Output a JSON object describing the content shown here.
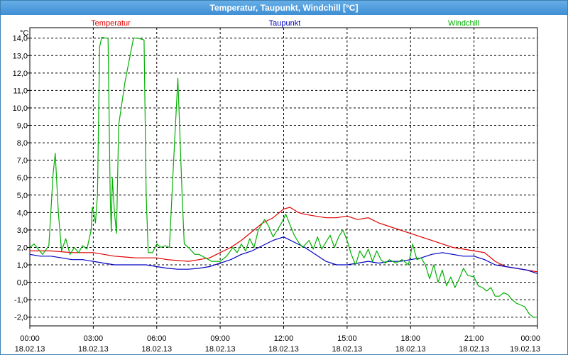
{
  "window": {
    "title": "Temperatur, Taupunkt, Windchill [°C]"
  },
  "chart_data": {
    "type": "line",
    "title": "Temperatur, Taupunkt, Windchill [°C]",
    "y_unit_label": "°C",
    "ylim": [
      -2.5,
      14.6
    ],
    "y_ticks": [
      14.0,
      13.0,
      12.0,
      11.0,
      10.0,
      9.0,
      8.0,
      7.0,
      6.0,
      5.0,
      4.0,
      3.0,
      2.0,
      1.0,
      0.0,
      -1.0,
      -2.0
    ],
    "y_tick_labels": [
      "14,0",
      "13,0",
      "12,0",
      "11,0",
      "10,0",
      "9,0",
      "8,0",
      "7,0",
      "6,0",
      "5,0",
      "4,0",
      "3,0",
      "2,0",
      "1,0",
      "0,0",
      "-1,0",
      "-2,0"
    ],
    "x_range_hours": [
      0,
      24
    ],
    "x_ticks": [
      {
        "t": "00:00",
        "d": "18.02.13"
      },
      {
        "t": "03:00",
        "d": "18.02.13"
      },
      {
        "t": "06:00",
        "d": "18.02.13"
      },
      {
        "t": "09:00",
        "d": "18.02.13"
      },
      {
        "t": "12:00",
        "d": "18.02.13"
      },
      {
        "t": "15:00",
        "d": "18.02.13"
      },
      {
        "t": "18:00",
        "d": "18.02.13"
      },
      {
        "t": "21:00",
        "d": "18.02.13"
      },
      {
        "t": "00:00",
        "d": "19.02.13"
      }
    ],
    "grid": true,
    "series": [
      {
        "name": "Temperatur",
        "color": "#e00000",
        "points": [
          [
            0.0,
            1.8
          ],
          [
            0.5,
            1.8
          ],
          [
            1.0,
            1.8
          ],
          [
            1.5,
            1.75
          ],
          [
            2.0,
            1.7
          ],
          [
            2.5,
            1.7
          ],
          [
            3.0,
            1.7
          ],
          [
            3.5,
            1.6
          ],
          [
            4.0,
            1.5
          ],
          [
            4.5,
            1.45
          ],
          [
            5.0,
            1.4
          ],
          [
            5.5,
            1.4
          ],
          [
            6.0,
            1.4
          ],
          [
            6.5,
            1.3
          ],
          [
            7.0,
            1.25
          ],
          [
            7.5,
            1.2
          ],
          [
            8.0,
            1.3
          ],
          [
            8.5,
            1.4
          ],
          [
            9.0,
            1.7
          ],
          [
            9.5,
            2.0
          ],
          [
            10.0,
            2.4
          ],
          [
            10.5,
            2.9
          ],
          [
            11.0,
            3.4
          ],
          [
            11.5,
            3.7
          ],
          [
            12.0,
            4.2
          ],
          [
            12.3,
            4.3
          ],
          [
            12.7,
            4.0
          ],
          [
            13.0,
            3.9
          ],
          [
            13.5,
            3.8
          ],
          [
            14.0,
            3.7
          ],
          [
            14.5,
            3.7
          ],
          [
            15.0,
            3.8
          ],
          [
            15.5,
            3.6
          ],
          [
            16.0,
            3.7
          ],
          [
            16.5,
            3.4
          ],
          [
            17.0,
            3.2
          ],
          [
            17.5,
            3.0
          ],
          [
            18.0,
            2.8
          ],
          [
            18.5,
            2.6
          ],
          [
            19.0,
            2.4
          ],
          [
            19.5,
            2.2
          ],
          [
            20.0,
            2.0
          ],
          [
            20.5,
            1.9
          ],
          [
            21.0,
            1.8
          ],
          [
            21.5,
            1.7
          ],
          [
            22.0,
            1.2
          ],
          [
            22.5,
            0.9
          ],
          [
            23.0,
            0.8
          ],
          [
            23.5,
            0.7
          ],
          [
            24.0,
            0.6
          ]
        ]
      },
      {
        "name": "Taupunkt",
        "color": "#0000c0",
        "points": [
          [
            0.0,
            1.6
          ],
          [
            0.5,
            1.5
          ],
          [
            1.0,
            1.5
          ],
          [
            1.5,
            1.4
          ],
          [
            2.0,
            1.3
          ],
          [
            2.5,
            1.3
          ],
          [
            3.0,
            1.2
          ],
          [
            3.5,
            1.1
          ],
          [
            4.0,
            1.0
          ],
          [
            4.5,
            1.0
          ],
          [
            5.0,
            1.0
          ],
          [
            5.5,
            1.0
          ],
          [
            6.0,
            0.9
          ],
          [
            6.5,
            0.8
          ],
          [
            7.0,
            0.75
          ],
          [
            7.5,
            0.75
          ],
          [
            8.0,
            0.8
          ],
          [
            8.5,
            0.9
          ],
          [
            9.0,
            1.1
          ],
          [
            9.5,
            1.3
          ],
          [
            10.0,
            1.6
          ],
          [
            10.5,
            1.8
          ],
          [
            11.0,
            2.1
          ],
          [
            11.5,
            2.4
          ],
          [
            12.0,
            2.6
          ],
          [
            12.5,
            2.3
          ],
          [
            13.0,
            2.0
          ],
          [
            13.5,
            1.6
          ],
          [
            14.0,
            1.2
          ],
          [
            14.5,
            1.0
          ],
          [
            15.0,
            1.0
          ],
          [
            15.5,
            1.1
          ],
          [
            16.0,
            1.2
          ],
          [
            16.5,
            1.1
          ],
          [
            17.0,
            1.2
          ],
          [
            17.5,
            1.2
          ],
          [
            18.0,
            1.3
          ],
          [
            18.5,
            1.4
          ],
          [
            19.0,
            1.6
          ],
          [
            19.5,
            1.7
          ],
          [
            20.0,
            1.6
          ],
          [
            20.5,
            1.5
          ],
          [
            21.0,
            1.5
          ],
          [
            21.5,
            1.3
          ],
          [
            22.0,
            1.0
          ],
          [
            22.5,
            0.9
          ],
          [
            23.0,
            0.8
          ],
          [
            23.5,
            0.7
          ],
          [
            24.0,
            0.5
          ]
        ]
      },
      {
        "name": "Windchill",
        "color": "#00b000",
        "points": [
          [
            0.0,
            2.0
          ],
          [
            0.2,
            2.2
          ],
          [
            0.4,
            1.9
          ],
          [
            0.6,
            1.6
          ],
          [
            0.9,
            2.1
          ],
          [
            1.1,
            6.2
          ],
          [
            1.2,
            7.4
          ],
          [
            1.35,
            4.0
          ],
          [
            1.5,
            1.8
          ],
          [
            1.7,
            2.5
          ],
          [
            1.9,
            1.6
          ],
          [
            2.1,
            2.0
          ],
          [
            2.3,
            1.7
          ],
          [
            2.5,
            2.1
          ],
          [
            2.7,
            1.9
          ],
          [
            2.9,
            3.0
          ],
          [
            2.95,
            4.3
          ],
          [
            3.05,
            3.8
          ],
          [
            3.1,
            3.4
          ],
          [
            3.2,
            5.0
          ],
          [
            3.3,
            13.5
          ],
          [
            3.4,
            14.05
          ],
          [
            3.6,
            14.0
          ],
          [
            3.7,
            14.0
          ],
          [
            3.8,
            5.0
          ],
          [
            3.85,
            2.9
          ],
          [
            3.9,
            6.0
          ],
          [
            4.0,
            4.0
          ],
          [
            4.1,
            2.8
          ],
          [
            4.2,
            9.0
          ],
          [
            4.5,
            11.5
          ],
          [
            4.9,
            14.0
          ],
          [
            5.1,
            14.0
          ],
          [
            5.4,
            13.9
          ],
          [
            5.5,
            5.0
          ],
          [
            5.6,
            1.7
          ],
          [
            5.8,
            1.7
          ],
          [
            6.0,
            2.2
          ],
          [
            6.2,
            2.0
          ],
          [
            6.4,
            2.1
          ],
          [
            6.6,
            2.0
          ],
          [
            6.8,
            7.0
          ],
          [
            7.0,
            11.7
          ],
          [
            7.2,
            5.0
          ],
          [
            7.3,
            2.2
          ],
          [
            7.5,
            2.0
          ],
          [
            7.8,
            1.6
          ],
          [
            8.0,
            1.6
          ],
          [
            8.3,
            1.4
          ],
          [
            8.6,
            1.2
          ],
          [
            9.0,
            1.2
          ],
          [
            9.3,
            1.5
          ],
          [
            9.6,
            2.0
          ],
          [
            9.8,
            1.7
          ],
          [
            10.0,
            2.2
          ],
          [
            10.2,
            1.8
          ],
          [
            10.4,
            2.5
          ],
          [
            10.6,
            2.0
          ],
          [
            10.8,
            3.0
          ],
          [
            11.1,
            3.6
          ],
          [
            11.3,
            3.2
          ],
          [
            11.5,
            2.6
          ],
          [
            11.7,
            3.0
          ],
          [
            11.9,
            3.4
          ],
          [
            12.1,
            3.9
          ],
          [
            12.3,
            3.3
          ],
          [
            12.5,
            2.7
          ],
          [
            12.7,
            2.3
          ],
          [
            12.9,
            2.0
          ],
          [
            13.2,
            2.4
          ],
          [
            13.4,
            1.9
          ],
          [
            13.6,
            2.6
          ],
          [
            13.8,
            1.9
          ],
          [
            14.0,
            2.3
          ],
          [
            14.2,
            2.7
          ],
          [
            14.4,
            2.0
          ],
          [
            14.6,
            2.6
          ],
          [
            14.8,
            3.0
          ],
          [
            15.0,
            2.4
          ],
          [
            15.2,
            1.6
          ],
          [
            15.4,
            1.0
          ],
          [
            15.6,
            1.8
          ],
          [
            15.8,
            1.4
          ],
          [
            16.0,
            1.9
          ],
          [
            16.2,
            1.2
          ],
          [
            16.4,
            1.8
          ],
          [
            16.6,
            1.3
          ],
          [
            16.8,
            1.1
          ],
          [
            17.0,
            1.3
          ],
          [
            17.3,
            1.1
          ],
          [
            17.6,
            1.3
          ],
          [
            17.9,
            1.0
          ],
          [
            18.1,
            2.2
          ],
          [
            18.3,
            1.3
          ],
          [
            18.5,
            1.4
          ],
          [
            18.7,
            1.0
          ],
          [
            18.9,
            0.2
          ],
          [
            19.1,
            1.0
          ],
          [
            19.3,
            0.0
          ],
          [
            19.5,
            0.7
          ],
          [
            19.7,
            -0.2
          ],
          [
            19.9,
            0.3
          ],
          [
            20.1,
            -0.3
          ],
          [
            20.3,
            0.2
          ],
          [
            20.5,
            0.8
          ],
          [
            20.7,
            0.4
          ],
          [
            21.0,
            0.3
          ],
          [
            21.2,
            -0.2
          ],
          [
            21.4,
            -0.3
          ],
          [
            21.6,
            -0.5
          ],
          [
            21.8,
            -0.3
          ],
          [
            22.0,
            -0.8
          ],
          [
            22.2,
            -0.8
          ],
          [
            22.4,
            -0.6
          ],
          [
            22.6,
            -0.7
          ],
          [
            22.8,
            -1.0
          ],
          [
            23.0,
            -1.2
          ],
          [
            23.2,
            -1.3
          ],
          [
            23.4,
            -1.4
          ],
          [
            23.6,
            -1.8
          ],
          [
            23.8,
            -2.0
          ],
          [
            24.0,
            -2.0
          ]
        ]
      }
    ]
  }
}
